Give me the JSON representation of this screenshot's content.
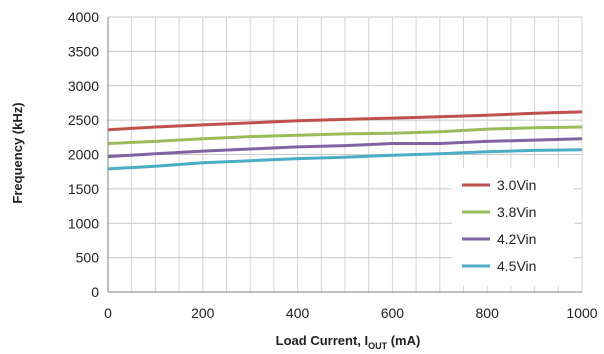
{
  "chart_data": {
    "type": "line",
    "title": "",
    "xlabel": {
      "prefix": "Load Current, I",
      "subscript": "OUT",
      "suffix": " (mA)"
    },
    "ylabel": "Frequency (kHz)",
    "xlim": [
      0,
      1000
    ],
    "ylim": [
      0,
      4000
    ],
    "xticks": [
      "0",
      "200",
      "400",
      "600",
      "800",
      "1000"
    ],
    "yticks": [
      "0",
      "500",
      "1000",
      "1500",
      "2000",
      "2500",
      "3000",
      "3500",
      "4000"
    ],
    "x_minor_step": 50,
    "y_major_step": 500,
    "grid": true,
    "legend_position": "bottom-right",
    "series": [
      {
        "name": "3.0Vin",
        "color": "#c0504d",
        "x": [
          0,
          100,
          200,
          300,
          400,
          500,
          600,
          700,
          800,
          900,
          1000
        ],
        "y": [
          2360,
          2400,
          2430,
          2460,
          2490,
          2510,
          2530,
          2550,
          2570,
          2600,
          2620
        ]
      },
      {
        "name": "3.8Vin",
        "color": "#9bbb59",
        "x": [
          0,
          100,
          200,
          300,
          400,
          500,
          600,
          700,
          800,
          900,
          1000
        ],
        "y": [
          2160,
          2190,
          2230,
          2260,
          2280,
          2300,
          2310,
          2330,
          2370,
          2390,
          2400
        ]
      },
      {
        "name": "4.2Vin",
        "color": "#8064a2",
        "x": [
          0,
          100,
          200,
          300,
          400,
          500,
          600,
          700,
          800,
          900,
          1000
        ],
        "y": [
          1970,
          2010,
          2050,
          2080,
          2110,
          2130,
          2160,
          2160,
          2190,
          2210,
          2230
        ]
      },
      {
        "name": "4.5Vin",
        "color": "#4bacc6",
        "x": [
          0,
          100,
          200,
          300,
          400,
          500,
          600,
          700,
          800,
          900,
          1000
        ],
        "y": [
          1790,
          1830,
          1880,
          1910,
          1940,
          1960,
          1990,
          2010,
          2040,
          2060,
          2070
        ]
      }
    ]
  }
}
